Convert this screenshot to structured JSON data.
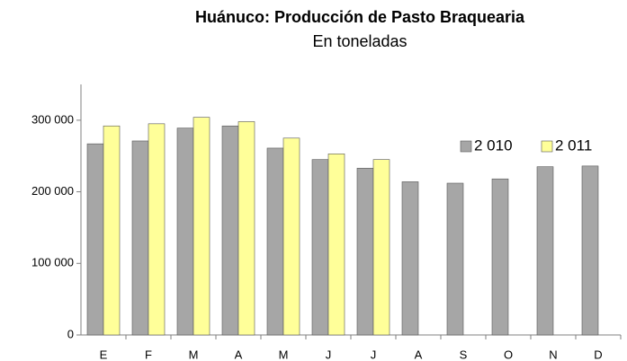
{
  "chart_data": {
    "type": "bar",
    "title": "Huánuco: Producción de Pasto Braquearia",
    "subtitle": "En toneladas",
    "categories": [
      "E",
      "F",
      "M",
      "A",
      "M",
      "J",
      "J",
      "A",
      "S",
      "O",
      "N",
      "D"
    ],
    "series": [
      {
        "name": "2 010",
        "color": "#a6a6a6",
        "values": [
          267000,
          271000,
          289000,
          292000,
          261000,
          245000,
          233000,
          214000,
          212000,
          218000,
          235000,
          236000
        ]
      },
      {
        "name": "2 011",
        "color": "#ffff99",
        "values": [
          292000,
          295000,
          304000,
          298000,
          275000,
          253000,
          245000,
          null,
          null,
          null,
          null,
          null
        ]
      }
    ],
    "ylim": [
      0,
      350000
    ],
    "yticks": [
      0,
      {
        "value": 100000,
        "label": "100 000"
      },
      {
        "value": 200000,
        "label": "200 000"
      },
      {
        "value": 300000,
        "label": "300 000"
      }
    ],
    "grid": false,
    "legend": "top-right"
  }
}
